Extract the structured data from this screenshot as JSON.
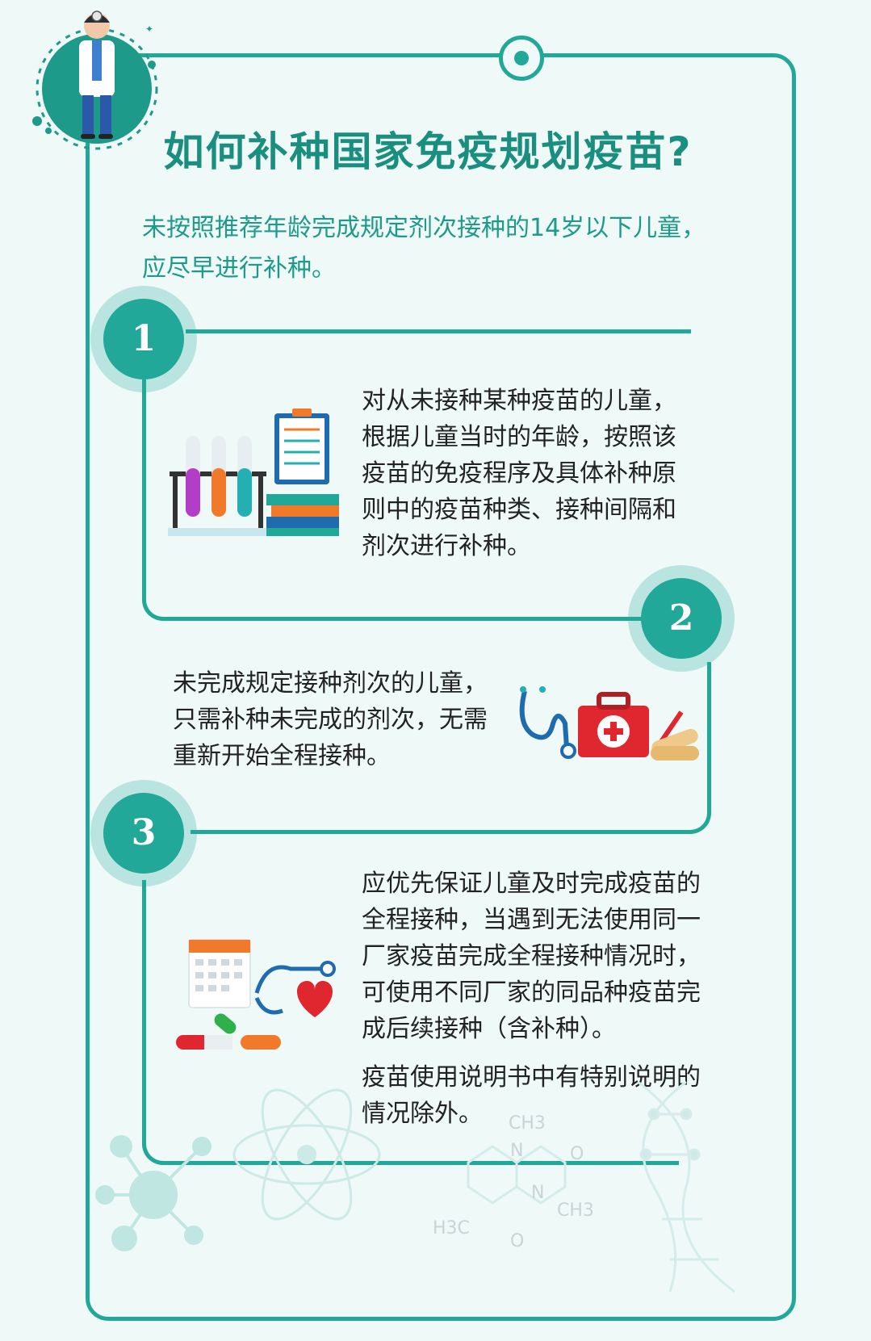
{
  "title": "如何补种国家免疫规划疫苗?",
  "intro": "未按照推荐年龄完成规定剂次接种的14岁以下儿童，应尽早进行补种。",
  "steps": [
    {
      "number": "1",
      "text": "对从未接种某种疫苗的儿童，根据儿童当时的年龄，按照该疫苗的免疫程序及具体补种原则中的疫苗种类、接种间隔和剂次进行补种。"
    },
    {
      "number": "2",
      "text": "未完成规定接种剂次的儿童，只需补种未完成的剂次，无需重新开始全程接种。"
    },
    {
      "number": "3",
      "text": "应优先保证儿童及时完成疫苗的全程接种，当遇到无法使用同一厂家疫苗完成全程接种情况时，可使用不同厂家的同品种疫苗完成后续接种（含补种）。",
      "note": "疫苗使用说明书中有特别说明的情况除外。"
    }
  ],
  "decor": {
    "ch3_a": "CH3",
    "ch3_b": "CH3",
    "h3c": "H3C",
    "n_a": "N",
    "n_b": "N",
    "o_a": "O",
    "o_b": "O"
  },
  "colors": {
    "accent": "#21a898",
    "title": "#1a8e7f",
    "text": "#222222"
  }
}
